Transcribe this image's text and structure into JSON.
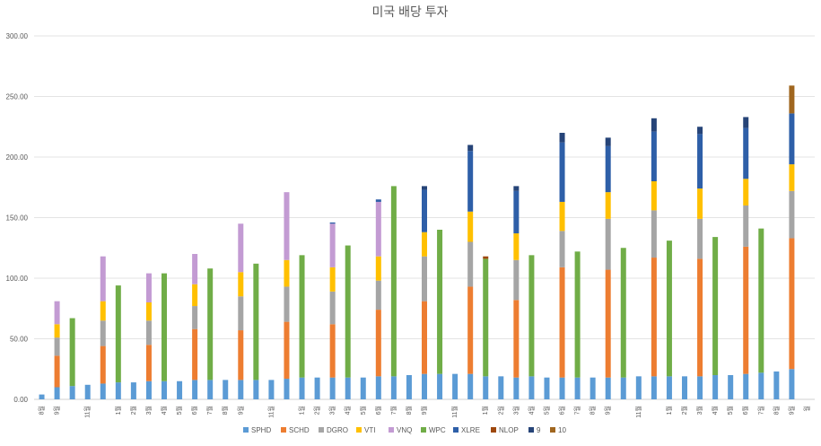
{
  "chart_data": {
    "type": "bar",
    "stacked": true,
    "title": "미국 배당 투자",
    "xlabel": "",
    "ylabel": "",
    "ylim": [
      0,
      300
    ],
    "yticks": [
      "0.00",
      "50.00",
      "100.00",
      "150.00",
      "200.00",
      "250.00",
      "300.00"
    ],
    "grid": true,
    "legend_position": "bottom",
    "categories": [
      "8월",
      "9월",
      "10월",
      "11월",
      "12월",
      "1월",
      "2월",
      "3월",
      "4월",
      "5월",
      "6월",
      "7월",
      "8월",
      "9월",
      "10월",
      "11월",
      "12월",
      "1월",
      "2월",
      "3월",
      "4월",
      "5월",
      "6월",
      "7월",
      "8월",
      "9월",
      "10월",
      "11월",
      "12월",
      "1월",
      "2월",
      "3월",
      "4월",
      "5월",
      "6월",
      "7월",
      "8월",
      "9월",
      "10월",
      "11월",
      "12월",
      "1월",
      "2월",
      "3월",
      "4월",
      "5월",
      "6월",
      "7월",
      "8월",
      "9월",
      "10월"
    ],
    "x_tick_labels": [
      "8월",
      "9월",
      "",
      "11월",
      "",
      "1월",
      "2월",
      "3월",
      "4월",
      "5월",
      "6월",
      "7월",
      "8월",
      "9월",
      "",
      "11월",
      "",
      "1월",
      "2월",
      "3월",
      "4월",
      "5월",
      "6월",
      "7월",
      "8월",
      "9월",
      "",
      "11월",
      "",
      "1월",
      "2월",
      "3월",
      "4월",
      "5월",
      "6월",
      "7월",
      "8월",
      "9월",
      "",
      "11월",
      "",
      "1월",
      "2월",
      "3월",
      "4월",
      "5월",
      "6월",
      "7월",
      "8월",
      "9월",
      "월"
    ],
    "series": [
      {
        "name": "SPHD",
        "color": "#5b9bd5",
        "values": [
          4,
          10,
          11,
          12,
          13,
          14,
          14,
          15,
          15,
          15,
          16,
          16,
          16,
          16,
          16,
          16,
          17,
          18,
          18,
          18,
          18,
          18,
          19,
          19,
          20,
          21,
          21,
          21,
          21,
          19,
          19,
          18,
          19,
          18,
          18,
          18,
          18,
          18,
          18,
          19,
          19,
          19,
          19,
          19,
          20,
          20,
          21,
          22,
          23,
          25,
          0
        ]
      },
      {
        "name": "SCHD",
        "color": "#ed7d31",
        "values": [
          0,
          26,
          0,
          0,
          31,
          0,
          0,
          30,
          0,
          0,
          42,
          0,
          0,
          41,
          0,
          0,
          47,
          0,
          0,
          44,
          0,
          0,
          55,
          0,
          0,
          60,
          0,
          0,
          72,
          0,
          0,
          64,
          0,
          0,
          91,
          0,
          0,
          89,
          0,
          0,
          98,
          0,
          0,
          97,
          0,
          0,
          105,
          0,
          0,
          108,
          0
        ]
      },
      {
        "name": "DGRO",
        "color": "#a5a5a5",
        "values": [
          0,
          15,
          0,
          0,
          21,
          0,
          0,
          20,
          0,
          0,
          19,
          0,
          0,
          28,
          0,
          0,
          29,
          0,
          0,
          27,
          0,
          0,
          24,
          0,
          0,
          37,
          0,
          0,
          37,
          0,
          0,
          33,
          0,
          0,
          30,
          0,
          0,
          42,
          0,
          0,
          39,
          0,
          0,
          33,
          0,
          0,
          34,
          0,
          0,
          39,
          0
        ]
      },
      {
        "name": "VTI",
        "color": "#ffc000",
        "values": [
          0,
          11,
          0,
          0,
          16,
          0,
          0,
          15,
          0,
          0,
          18,
          0,
          0,
          20,
          0,
          0,
          22,
          0,
          0,
          20,
          0,
          0,
          20,
          0,
          0,
          20,
          0,
          0,
          25,
          0,
          0,
          22,
          0,
          0,
          24,
          0,
          0,
          22,
          0,
          0,
          24,
          0,
          0,
          25,
          0,
          0,
          22,
          0,
          0,
          22,
          0
        ]
      },
      {
        "name": "VNQ",
        "color": "#c39bd3",
        "values": [
          0,
          19,
          0,
          0,
          37,
          0,
          0,
          24,
          0,
          0,
          25,
          0,
          0,
          40,
          0,
          0,
          56,
          0,
          0,
          36,
          0,
          0,
          45,
          0,
          0,
          0,
          0,
          0,
          0,
          0,
          0,
          0,
          0,
          0,
          0,
          0,
          0,
          0,
          0,
          0,
          0,
          0,
          0,
          0,
          0,
          0,
          0,
          0,
          0,
          0,
          0
        ]
      },
      {
        "name": "WPC",
        "color": "#70ad47",
        "values": [
          0,
          0,
          56,
          0,
          0,
          80,
          0,
          0,
          89,
          0,
          0,
          92,
          0,
          0,
          96,
          0,
          0,
          101,
          0,
          0,
          109,
          0,
          0,
          157,
          0,
          0,
          119,
          0,
          0,
          97,
          0,
          0,
          100,
          0,
          0,
          104,
          0,
          0,
          107,
          0,
          0,
          112,
          0,
          0,
          114,
          0,
          0,
          119,
          0,
          0,
          0
        ]
      },
      {
        "name": "XLRE",
        "color": "#2e5fa8",
        "values": [
          0,
          0,
          0,
          0,
          0,
          0,
          0,
          0,
          0,
          0,
          0,
          0,
          0,
          0,
          0,
          0,
          0,
          0,
          0,
          1,
          0,
          0,
          2,
          0,
          0,
          35,
          0,
          0,
          50,
          0,
          0,
          35,
          0,
          0,
          49,
          0,
          0,
          38,
          0,
          0,
          41,
          0,
          0,
          45,
          0,
          0,
          42,
          0,
          0,
          42,
          0
        ]
      },
      {
        "name": "NLOP",
        "color": "#9e480e",
        "values": [
          0,
          0,
          0,
          0,
          0,
          0,
          0,
          0,
          0,
          0,
          0,
          0,
          0,
          0,
          0,
          0,
          0,
          0,
          0,
          0,
          0,
          0,
          0,
          0,
          0,
          0,
          0,
          0,
          0,
          2,
          0,
          0,
          0,
          0,
          0,
          0,
          0,
          0,
          0,
          0,
          0,
          0,
          0,
          0,
          0,
          0,
          0,
          0,
          0,
          0,
          0
        ]
      },
      {
        "name": "9",
        "color": "#264478",
        "values": [
          0,
          0,
          0,
          0,
          0,
          0,
          0,
          0,
          0,
          0,
          0,
          0,
          0,
          0,
          0,
          0,
          0,
          0,
          0,
          0,
          0,
          0,
          0,
          0,
          0,
          3,
          0,
          0,
          5,
          0,
          0,
          4,
          0,
          0,
          8,
          0,
          0,
          7,
          0,
          0,
          11,
          0,
          0,
          6,
          0,
          0,
          9,
          0,
          0,
          0,
          0
        ]
      },
      {
        "name": "10",
        "color": "#a0661f",
        "values": [
          0,
          0,
          0,
          0,
          0,
          0,
          0,
          0,
          0,
          0,
          0,
          0,
          0,
          0,
          0,
          0,
          0,
          0,
          0,
          0,
          0,
          0,
          0,
          0,
          0,
          0,
          0,
          0,
          0,
          0,
          0,
          0,
          0,
          0,
          0,
          0,
          0,
          0,
          0,
          0,
          0,
          0,
          0,
          0,
          0,
          0,
          0,
          0,
          0,
          23,
          0
        ]
      }
    ]
  }
}
